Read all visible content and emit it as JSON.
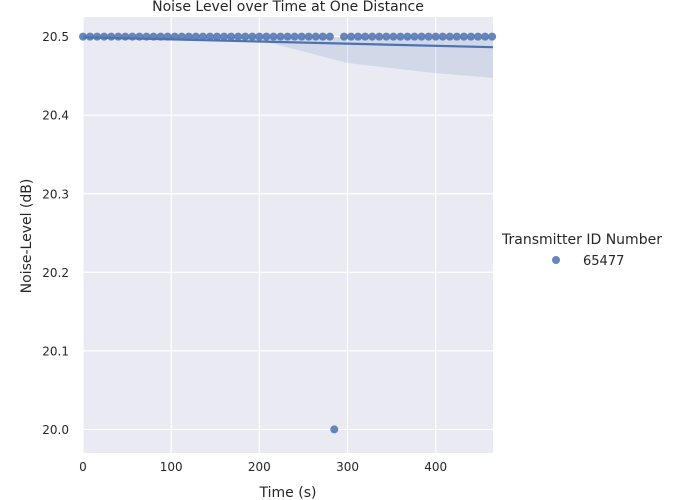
{
  "chart_data": {
    "type": "scatter",
    "title": "Noise Level over Time at One Distance",
    "xlabel": "Time (s)",
    "ylabel": "Noise-Level (dB)",
    "xlim": [
      0,
      465
    ],
    "ylim": [
      19.97,
      20.525
    ],
    "xticks": [
      0,
      100,
      200,
      300,
      400
    ],
    "xtick_labels": [
      "0",
      "100",
      "200",
      "300",
      "400"
    ],
    "yticks": [
      20.0,
      20.1,
      20.2,
      20.3,
      20.4,
      20.5
    ],
    "ytick_labels": [
      "20.0",
      "20.1",
      "20.2",
      "20.3",
      "20.4",
      "20.5"
    ],
    "grid": true,
    "legend": {
      "title": "Transmitter ID Number",
      "placement": "right",
      "entries": [
        {
          "label": "65477",
          "color": "#4c72b0"
        }
      ]
    },
    "series": [
      {
        "name": "65477",
        "color": "#4c72b0",
        "x": [
          0,
          8,
          16,
          24,
          32,
          40,
          48,
          56,
          64,
          72,
          80,
          88,
          96,
          104,
          112,
          120,
          128,
          136,
          144,
          152,
          160,
          168,
          176,
          184,
          192,
          200,
          208,
          216,
          224,
          232,
          240,
          248,
          256,
          264,
          272,
          280,
          285,
          296,
          304,
          312,
          320,
          328,
          336,
          344,
          352,
          360,
          368,
          376,
          384,
          392,
          400,
          408,
          416,
          424,
          432,
          440,
          448,
          456,
          464
        ],
        "y": [
          20.5,
          20.5,
          20.5,
          20.5,
          20.5,
          20.5,
          20.5,
          20.5,
          20.5,
          20.5,
          20.5,
          20.5,
          20.5,
          20.5,
          20.5,
          20.5,
          20.5,
          20.5,
          20.5,
          20.5,
          20.5,
          20.5,
          20.5,
          20.5,
          20.5,
          20.5,
          20.5,
          20.5,
          20.5,
          20.5,
          20.5,
          20.5,
          20.5,
          20.5,
          20.5,
          20.5,
          20.0,
          20.5,
          20.5,
          20.5,
          20.5,
          20.5,
          20.5,
          20.5,
          20.5,
          20.5,
          20.5,
          20.5,
          20.5,
          20.5,
          20.5,
          20.5,
          20.5,
          20.5,
          20.5,
          20.5,
          20.5,
          20.5,
          20.5
        ]
      }
    ],
    "regression": {
      "line": {
        "x": [
          0,
          465
        ],
        "y": [
          20.4992,
          20.4866
        ]
      },
      "ci_upper": {
        "x": [
          0,
          100,
          200,
          300,
          400,
          465
        ],
        "y": [
          20.5002,
          20.4999,
          20.4995,
          20.4996,
          20.4998,
          20.5
        ]
      },
      "ci_lower": {
        "x": [
          0,
          100,
          200,
          300,
          400,
          465
        ],
        "y": [
          20.4972,
          20.4965,
          20.4955,
          20.4665,
          20.4535,
          20.4475
        ]
      }
    },
    "colors": {
      "background": "#eaeaf2",
      "grid": "#ffffff",
      "series": "#4c72b0"
    }
  }
}
